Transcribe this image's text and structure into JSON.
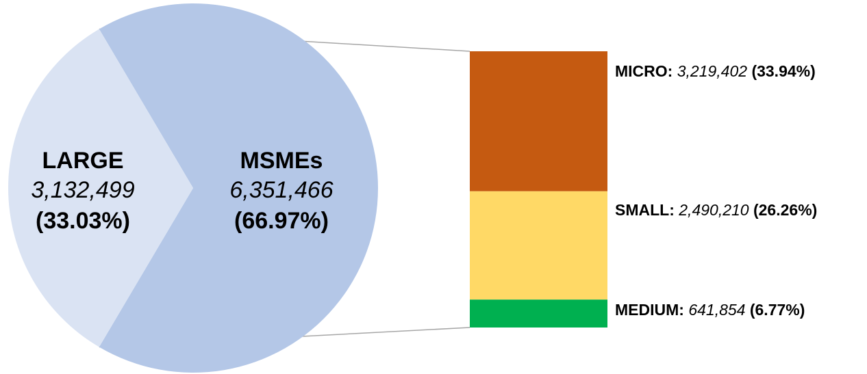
{
  "chart_data": {
    "type": "pie",
    "pie": {
      "slices": [
        {
          "name": "MSMEs",
          "value": 6351466,
          "value_label": "6,351,466",
          "percent": 66.97,
          "percent_label": "(66.97%)",
          "color": "#b4c7e7"
        },
        {
          "name": "LARGE",
          "value": 3132499,
          "value_label": "3,132,499",
          "percent": 33.03,
          "percent_label": "(33.03%)",
          "color": "#dae3f3"
        }
      ]
    },
    "breakdown": {
      "type": "bar",
      "stacked": true,
      "segments": [
        {
          "name": "MICRO:",
          "value": 3219402,
          "value_label": "3,219,402",
          "percent": 33.94,
          "percent_label": "(33.94%)",
          "color": "#c55a11"
        },
        {
          "name": "SMALL:",
          "value": 2490210,
          "value_label": "2,490,210",
          "percent": 26.26,
          "percent_label": "(26.26%)",
          "color": "#ffd966"
        },
        {
          "name": "MEDIUM:",
          "value": 641854,
          "value_label": "641,854",
          "percent": 6.77,
          "percent_label": "(6.77%)",
          "color": "#00b050"
        }
      ]
    },
    "connector_color": "#a6a6a6"
  }
}
